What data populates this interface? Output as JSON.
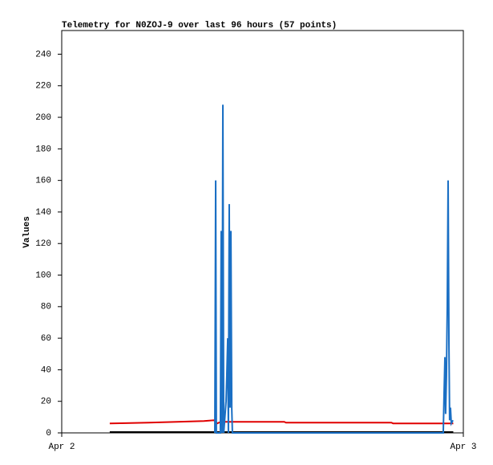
{
  "chart_data": {
    "type": "line",
    "title": "Telemetry for N0ZOJ-9 over last 96 hours (57 points)",
    "y_label": "Values",
    "xlim": [
      0,
      24
    ],
    "xticks": [
      {
        "value": 0,
        "label": "Apr 2"
      },
      {
        "value": 24,
        "label": "Apr 3"
      }
    ],
    "ylim": [
      0,
      255
    ],
    "yticks": [
      0,
      20,
      40,
      60,
      80,
      100,
      120,
      140,
      160,
      180,
      200,
      220,
      240
    ],
    "series": [
      {
        "color": "#e00000",
        "x": [
          2.87,
          3.8,
          5.2,
          6.9,
          8.5,
          9.1,
          9.3,
          9.5,
          13.3,
          13.4,
          19.7,
          19.8,
          23.4
        ],
        "values": [
          6,
          6.2,
          6.5,
          7,
          7.5,
          8,
          6,
          7,
          7,
          6.5,
          6.5,
          6,
          6
        ]
      },
      {
        "color": "#000000",
        "x": [
          2.87,
          23.4
        ],
        "values": [
          0.5,
          0.5
        ]
      },
      {
        "color": "#1a6fc4",
        "x": [
          9.15,
          9.2,
          9.24,
          9.48,
          9.53,
          9.58,
          9.63,
          9.68,
          9.82,
          9.87,
          9.92,
          9.96,
          10.01,
          10.06,
          10.11,
          10.16,
          10.2,
          22.8,
          22.85,
          22.9,
          22.94,
          22.99,
          23.04,
          23.09,
          23.14,
          23.18,
          23.23,
          23.28,
          23.38
        ],
        "values": [
          0,
          160,
          0,
          0,
          128,
          0,
          208,
          0,
          20,
          38,
          60,
          0,
          145,
          16,
          128,
          16,
          0,
          0,
          25,
          48,
          12,
          36,
          80,
          160,
          56,
          8,
          16,
          6,
          8
        ]
      }
    ]
  }
}
